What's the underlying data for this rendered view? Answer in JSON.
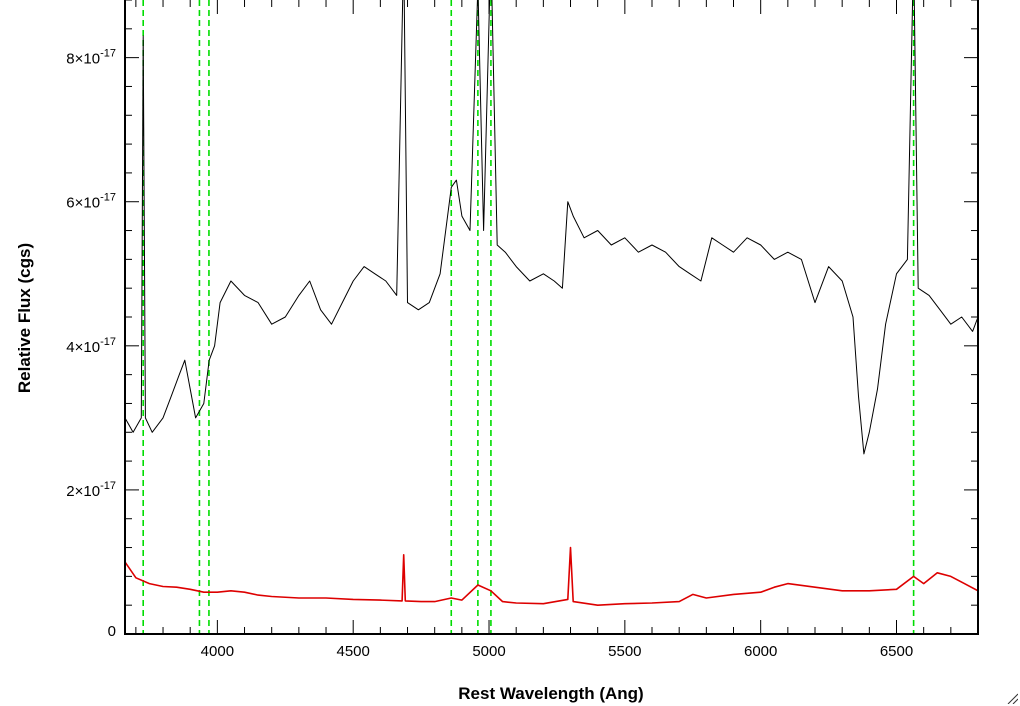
{
  "chart_data": {
    "type": "line",
    "title": "",
    "xlabel": "Rest Wavelength (Ang)",
    "ylabel": "Relative Flux (cgs)",
    "xlim": [
      3660,
      6800
    ],
    "ylim": [
      0,
      8.8e-17
    ],
    "x_ticks": [
      4000,
      4500,
      5000,
      5500,
      6000,
      6500
    ],
    "x_tick_labels": [
      "4000",
      "4500",
      "5000",
      "5500",
      "6000",
      "6500"
    ],
    "y_ticks": [
      0,
      2e-17,
      4e-17,
      6e-17,
      8e-17
    ],
    "y_tick_labels": [
      {
        "mantissa": "0",
        "exponent": ""
      },
      {
        "mantissa": "2×10",
        "exponent": "-17"
      },
      {
        "mantissa": "4×10",
        "exponent": "-17"
      },
      {
        "mantissa": "6×10",
        "exponent": "-17"
      },
      {
        "mantissa": "8×10",
        "exponent": "-17"
      }
    ],
    "grid": false,
    "legend": "none",
    "reference_lines": {
      "color": "#00dd00",
      "style": "dashed",
      "x": [
        3727,
        3934,
        3969,
        4861,
        4959,
        5007,
        6563
      ]
    },
    "series": [
      {
        "color": "#000000",
        "x": [
          3660,
          3690,
          3720,
          3727,
          3735,
          3760,
          3800,
          3830,
          3860,
          3880,
          3900,
          3920,
          3950,
          3970,
          3990,
          4010,
          4050,
          4100,
          4150,
          4200,
          4250,
          4300,
          4340,
          4380,
          4420,
          4460,
          4500,
          4540,
          4580,
          4620,
          4660,
          4686,
          4700,
          4740,
          4780,
          4820,
          4861,
          4880,
          4900,
          4930,
          4959,
          4980,
          5007,
          5030,
          5060,
          5100,
          5150,
          5200,
          5240,
          5270,
          5290,
          5310,
          5350,
          5400,
          5450,
          5500,
          5550,
          5600,
          5650,
          5700,
          5740,
          5780,
          5820,
          5860,
          5900,
          5950,
          6000,
          6050,
          6100,
          6150,
          6200,
          6250,
          6300,
          6340,
          6360,
          6380,
          6400,
          6430,
          6460,
          6500,
          6540,
          6563,
          6580,
          6620,
          6660,
          6700,
          6740,
          6780,
          6800
        ],
        "y": [
          3e-17,
          2.8e-17,
          3e-17,
          8.3e-17,
          3e-17,
          2.8e-17,
          3e-17,
          3.3e-17,
          3.6e-17,
          3.8e-17,
          3.4e-17,
          3e-17,
          3.2e-17,
          3.8e-17,
          4e-17,
          4.6e-17,
          4.9e-17,
          4.7e-17,
          4.6e-17,
          4.3e-17,
          4.4e-17,
          4.7e-17,
          4.9e-17,
          4.5e-17,
          4.3e-17,
          4.6e-17,
          4.9e-17,
          5.1e-17,
          5e-17,
          4.9e-17,
          4.7e-17,
          9.5e-17,
          4.6e-17,
          4.5e-17,
          4.6e-17,
          5e-17,
          6.2e-17,
          6.3e-17,
          5.8e-17,
          5.6e-17,
          9e-17,
          5.6e-17,
          9.5e-17,
          5.4e-17,
          5.3e-17,
          5.1e-17,
          4.9e-17,
          5e-17,
          4.9e-17,
          4.8e-17,
          6e-17,
          5.8e-17,
          5.5e-17,
          5.6e-17,
          5.4e-17,
          5.5e-17,
          5.3e-17,
          5.4e-17,
          5.3e-17,
          5.1e-17,
          5e-17,
          4.9e-17,
          5.5e-17,
          5.4e-17,
          5.3e-17,
          5.5e-17,
          5.4e-17,
          5.2e-17,
          5.3e-17,
          5.2e-17,
          4.6e-17,
          5.1e-17,
          4.9e-17,
          4.4e-17,
          3.3e-17,
          2.5e-17,
          2.8e-17,
          3.4e-17,
          4.3e-17,
          5e-17,
          5.2e-17,
          9.5e-17,
          4.8e-17,
          4.7e-17,
          4.5e-17,
          4.3e-17,
          4.4e-17,
          4.2e-17,
          4.4e-17
        ]
      },
      {
        "color": "#dd0000",
        "x": [
          3660,
          3700,
          3750,
          3800,
          3850,
          3900,
          3950,
          4000,
          4050,
          4100,
          4150,
          4200,
          4300,
          4400,
          4500,
          4600,
          4680,
          4686,
          4692,
          4750,
          4800,
          4861,
          4900,
          4959,
          5007,
          5050,
          5100,
          5200,
          5290,
          5300,
          5310,
          5400,
          5500,
          5600,
          5700,
          5750,
          5800,
          5900,
          6000,
          6050,
          6100,
          6200,
          6300,
          6400,
          6500,
          6563,
          6600,
          6650,
          6700,
          6750,
          6800
        ],
        "y": [
          1e-17,
          7.8e-18,
          7e-18,
          6.6e-18,
          6.5e-18,
          6.2e-18,
          5.8e-18,
          5.8e-18,
          6e-18,
          5.8e-18,
          5.4e-18,
          5.2e-18,
          5e-18,
          5e-18,
          4.8e-18,
          4.7e-18,
          4.6e-18,
          1.1e-17,
          4.6e-18,
          4.5e-18,
          4.5e-18,
          5e-18,
          4.7e-18,
          6.8e-18,
          6e-18,
          4.5e-18,
          4.3e-18,
          4.2e-18,
          4.8e-18,
          1.2e-17,
          4.5e-18,
          4e-18,
          4.2e-18,
          4.3e-18,
          4.5e-18,
          5.5e-18,
          5e-18,
          5.5e-18,
          5.8e-18,
          6.5e-18,
          7e-18,
          6.5e-18,
          6e-18,
          6e-18,
          6.2e-18,
          8e-18,
          7e-18,
          8.5e-18,
          8e-18,
          7e-18,
          6e-18
        ]
      }
    ]
  }
}
